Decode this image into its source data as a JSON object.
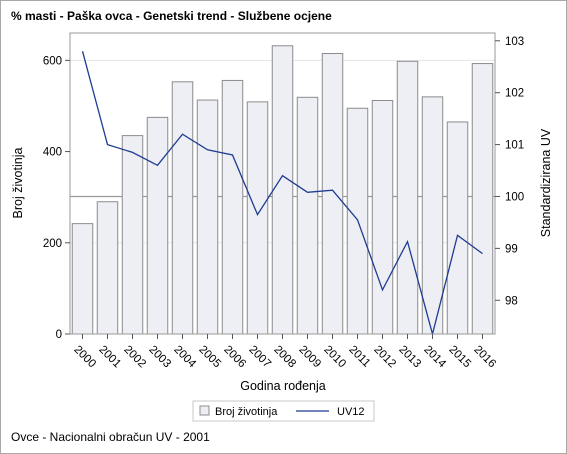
{
  "chart_data": {
    "type": "bar",
    "title": "% masti - Paška ovca - Genetski trend - Službene ocjene",
    "footnote": "Ovce - Nacionalni obračun UV - 2001",
    "xlabel": "Godina rođenja",
    "ylabel_left": "Broj životinja",
    "ylabel_right": "Standardizirana UV",
    "categories": [
      "2000",
      "2001",
      "2002",
      "2003",
      "2004",
      "2005",
      "2006",
      "2007",
      "2008",
      "2009",
      "2010",
      "2011",
      "2012",
      "2013",
      "2014",
      "2015",
      "2016"
    ],
    "series": [
      {
        "name": "Broj životinja",
        "type": "bar",
        "axis": "left",
        "color": "#edeff5",
        "edge_color": "#8c8c8c",
        "values": [
          242,
          290,
          435,
          475,
          553,
          513,
          556,
          509,
          632,
          519,
          615,
          495,
          512,
          598,
          520,
          465,
          593
        ]
      },
      {
        "name": "UV12",
        "type": "line",
        "axis": "right",
        "color": "#1f3c91",
        "values": [
          102.8,
          101.0,
          100.85,
          100.6,
          101.2,
          100.9,
          100.8,
          99.65,
          100.4,
          100.08,
          100.12,
          99.55,
          98.2,
          99.13,
          97.35,
          99.25,
          98.9
        ]
      }
    ],
    "ylim_left": [
      0,
      660
    ],
    "yticks_left": [
      0,
      200,
      400,
      600
    ],
    "ylim_right": [
      97.35,
      103.15
    ],
    "yticks_right": [
      98,
      99,
      100,
      101,
      102,
      103
    ],
    "reference_line": {
      "axis": "right",
      "value": 100,
      "color": "#9a9a9a"
    },
    "grid": true,
    "gridline_values_left": [
      600,
      200
    ],
    "grid_color": "#e6e6e6",
    "legend": {
      "position": "bottom",
      "entries": [
        "Broj životinja",
        "UV12"
      ]
    }
  }
}
